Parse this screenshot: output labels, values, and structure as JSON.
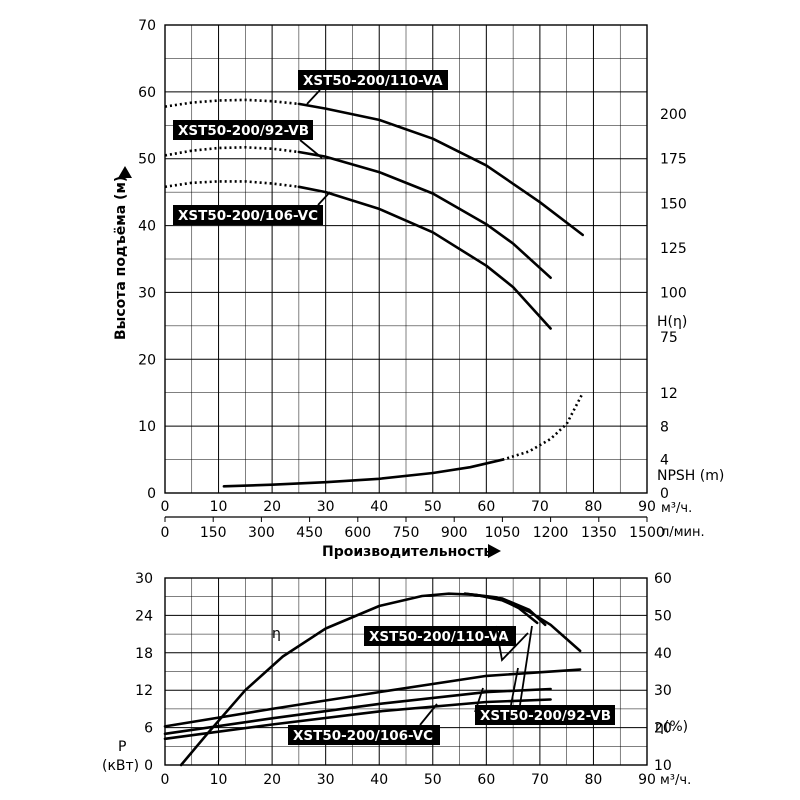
{
  "top": {
    "y_label": "Высота подъёма (м)",
    "y_ticks": [
      "0",
      "10",
      "20",
      "30",
      "40",
      "50",
      "60",
      "70"
    ],
    "right_h_ticks": [
      "75",
      "100",
      "125",
      "150",
      "175",
      "200"
    ],
    "right_h_label": "H(η)",
    "right_npsh_ticks": [
      "0",
      "4",
      "8",
      "12"
    ],
    "right_npsh_label": "NPSH (m)",
    "x_m3h_ticks": [
      "0",
      "10",
      "20",
      "30",
      "40",
      "50",
      "60",
      "70",
      "80",
      "90"
    ],
    "x_m3h_unit": "м³/ч.",
    "x_lmin_ticks": [
      "0",
      "150",
      "300",
      "450",
      "600",
      "750",
      "900",
      "1050",
      "1200",
      "1350",
      "1500"
    ],
    "x_lmin_unit": "л/мин.",
    "x_label": "Производительность",
    "tags": {
      "va": "XST50-200/110-VA",
      "vb": "XST50-200/92-VB",
      "vc": "XST50-200/106-VC"
    }
  },
  "bottom": {
    "left_ticks": [
      "0",
      "6",
      "12",
      "18",
      "24",
      "30"
    ],
    "left_label_1": "P",
    "left_label_2": "(кВт)",
    "right_ticks": [
      "10",
      "20",
      "30",
      "40",
      "50",
      "60"
    ],
    "right_label": "η(%)",
    "x_ticks": [
      "0",
      "10",
      "20",
      "30",
      "40",
      "50",
      "60",
      "70",
      "80",
      "90"
    ],
    "x_unit": "м³/ч.",
    "eta_label": "η",
    "tags": {
      "va": "XST50-200/110-VA",
      "vb": "XST50-200/92-VB",
      "vc": "XST50-200/106-VC"
    }
  },
  "chart_data": [
    {
      "type": "line",
      "xlabel": "Производительность",
      "ylabel": "Высота подъёма (м)",
      "x_unit": "м³/ч.",
      "xlim": [
        0,
        90
      ],
      "ylim": [
        0,
        70
      ],
      "grid": true,
      "series": [
        {
          "name": "XST50-200/110-VA",
          "x": [
            0,
            5,
            10,
            15,
            20,
            25,
            30,
            40,
            50,
            60,
            70,
            78
          ],
          "y": [
            57.8,
            58.4,
            58.7,
            58.8,
            58.6,
            58.2,
            57.5,
            55.8,
            53.0,
            49.0,
            43.5,
            38.6
          ],
          "dotted_until": 25
        },
        {
          "name": "XST50-200/92-VB",
          "x": [
            0,
            5,
            10,
            15,
            20,
            25,
            30,
            40,
            50,
            60,
            65,
            72
          ],
          "y": [
            50.5,
            51.2,
            51.6,
            51.7,
            51.5,
            51.0,
            50.3,
            48.0,
            44.8,
            40.2,
            37.3,
            32.2
          ],
          "dotted_until": 25
        },
        {
          "name": "XST50-200/106-VC",
          "x": [
            0,
            5,
            10,
            15,
            20,
            25,
            30,
            40,
            50,
            60,
            65,
            72
          ],
          "y": [
            45.8,
            46.4,
            46.6,
            46.6,
            46.3,
            45.8,
            45.0,
            42.5,
            39.0,
            34.0,
            30.8,
            24.6
          ],
          "dotted_until": 25
        },
        {
          "name": "NPSH (m)",
          "x": [
            11,
            20,
            30,
            40,
            50,
            57,
            63,
            68,
            72,
            75,
            78
          ],
          "y_npsh": [
            0.8,
            1.0,
            1.3,
            1.7,
            2.4,
            3.1,
            4.0,
            5.0,
            6.5,
            8.3,
            12.0
          ],
          "dotted_from": 63
        }
      ]
    },
    {
      "type": "line",
      "x_unit": "м³/ч.",
      "xlim": [
        0,
        90
      ],
      "ylim_left_kW": [
        0,
        30
      ],
      "ylim_right_percent": [
        10,
        60
      ],
      "grid": true,
      "series": [
        {
          "name": "XST50-200/110-VA",
          "x": [
            0,
            20,
            40,
            60,
            77.5
          ],
          "power": [
            6.2,
            9.0,
            11.7,
            14.3,
            15.3
          ]
        },
        {
          "name": "XST50-200/92-VB",
          "x": [
            0,
            20,
            40,
            60,
            72
          ],
          "power": [
            5.0,
            7.5,
            9.8,
            11.7,
            12.2
          ]
        },
        {
          "name": "XST50-200/106-VC",
          "x": [
            0,
            20,
            40,
            60,
            72
          ],
          "power": [
            4.2,
            6.5,
            8.6,
            10.1,
            10.5
          ]
        },
        {
          "name": "η",
          "x": [
            3,
            8,
            15,
            22,
            30,
            40,
            48,
            53,
            58,
            63,
            68,
            72,
            77.5
          ],
          "eta": [
            10.0,
            18.5,
            30.0,
            39.0,
            46.5,
            52.5,
            55.2,
            55.8,
            55.5,
            54.0,
            51.0,
            47.5,
            40.5
          ]
        },
        {
          "name": "η XST50-200/106-VC",
          "x": [
            56,
            62,
            66,
            69.5
          ],
          "eta": [
            55.8,
            54.8,
            52.0,
            48.0
          ]
        },
        {
          "name": "η XST50-200/92-VB",
          "x": [
            56,
            63,
            68,
            71
          ],
          "eta": [
            55.8,
            54.5,
            51.5,
            47.5
          ]
        }
      ]
    }
  ]
}
